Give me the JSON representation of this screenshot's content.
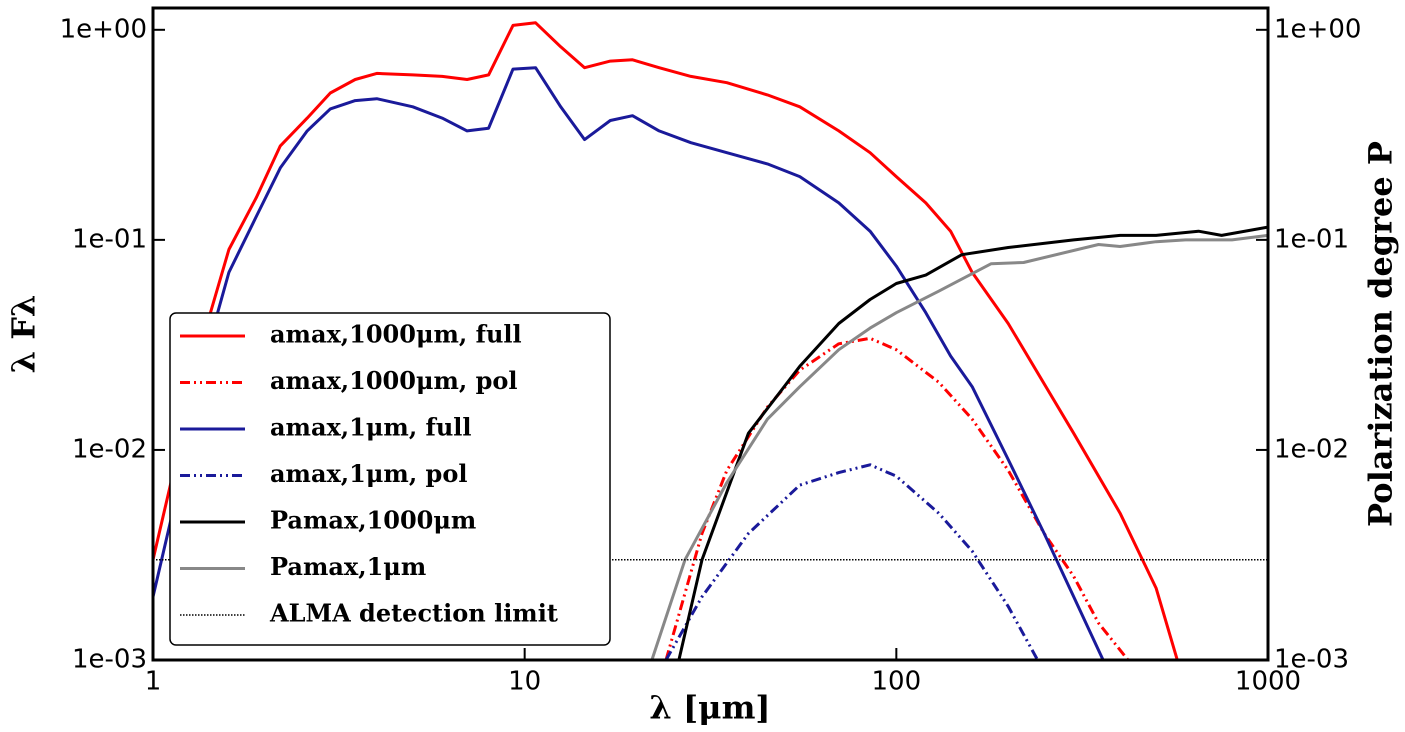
{
  "chart_data": {
    "type": "line",
    "xlabel": "λ [μm]",
    "ylabel": "λ Fλ",
    "y2label": "Polarization degree P",
    "xscale": "log",
    "yscale": "log",
    "xlim": [
      1,
      1000
    ],
    "ylim": [
      0.001,
      1.27
    ],
    "y2lim": [
      0.001,
      1.27
    ],
    "xticks": [
      1,
      10,
      100,
      1000
    ],
    "yticks": [
      {
        "value": 0.001,
        "label": "1e-03"
      },
      {
        "value": 0.01,
        "label": "1e-02"
      },
      {
        "value": 0.1,
        "label": "1e-01"
      },
      {
        "value": 1,
        "label": "1e+00"
      }
    ],
    "y2ticks": [
      {
        "value": 0.001,
        "label": "1e-03"
      },
      {
        "value": 0.01,
        "label": "1e-02"
      },
      {
        "value": 0.1,
        "label": "1e-01"
      },
      {
        "value": 1,
        "label": "1e+00"
      }
    ],
    "legend": "lower left",
    "series": [
      {
        "name": "amax,1000μm, full",
        "color": "#ff0000",
        "dash": "solid",
        "x": [
          1,
          1.2,
          1.4,
          1.6,
          1.9,
          2.2,
          2.6,
          3,
          3.5,
          4,
          5,
          6,
          7,
          8,
          9.3,
          10.7,
          12.5,
          14.5,
          17,
          19.5,
          23,
          28,
          35,
          45,
          55,
          70,
          85,
          100,
          120,
          140,
          160,
          200,
          300,
          400,
          500,
          570
        ],
        "values": [
          0.003,
          0.012,
          0.04,
          0.09,
          0.16,
          0.28,
          0.38,
          0.5,
          0.58,
          0.62,
          0.61,
          0.6,
          0.58,
          0.61,
          1.05,
          1.08,
          0.83,
          0.66,
          0.71,
          0.72,
          0.66,
          0.6,
          0.56,
          0.49,
          0.43,
          0.33,
          0.26,
          0.2,
          0.15,
          0.11,
          0.07,
          0.04,
          0.012,
          0.005,
          0.0022,
          0.001
        ]
      },
      {
        "name": "amax,1000μm, pol",
        "color": "#ff0000",
        "dash": "dashdot",
        "x": [
          24,
          30,
          35,
          45,
          55,
          70,
          85,
          100,
          130,
          160,
          200,
          250,
          300,
          350,
          420
        ],
        "values": [
          0.001,
          0.004,
          0.008,
          0.016,
          0.024,
          0.032,
          0.034,
          0.03,
          0.021,
          0.014,
          0.008,
          0.004,
          0.0025,
          0.0015,
          0.001
        ]
      },
      {
        "name": "amax,1μm, full",
        "color": "#1a1a9a",
        "dash": "solid",
        "x": [
          1,
          1.2,
          1.4,
          1.6,
          1.9,
          2.2,
          2.6,
          3,
          3.5,
          4,
          5,
          6,
          7,
          8,
          9.3,
          10.7,
          12.5,
          14.5,
          17,
          19.5,
          23,
          28,
          35,
          45,
          55,
          70,
          85,
          100,
          120,
          140,
          160,
          200,
          250,
          300,
          360
        ],
        "values": [
          0.002,
          0.008,
          0.03,
          0.07,
          0.13,
          0.22,
          0.33,
          0.42,
          0.46,
          0.47,
          0.43,
          0.38,
          0.33,
          0.34,
          0.65,
          0.66,
          0.43,
          0.3,
          0.37,
          0.39,
          0.33,
          0.29,
          0.26,
          0.23,
          0.2,
          0.15,
          0.11,
          0.075,
          0.045,
          0.028,
          0.02,
          0.009,
          0.004,
          0.002,
          0.001
        ]
      },
      {
        "name": "amax,1μm, pol",
        "color": "#1a1a9a",
        "dash": "dashdot",
        "x": [
          24,
          30,
          40,
          55,
          70,
          85,
          100,
          130,
          160,
          200,
          240
        ],
        "values": [
          0.001,
          0.002,
          0.004,
          0.0068,
          0.0078,
          0.0085,
          0.0075,
          0.005,
          0.0033,
          0.0018,
          0.001
        ]
      },
      {
        "name": "Pamax,1000μm",
        "color": "#000000",
        "dash": "solid",
        "axis": "y2",
        "x": [
          26,
          30,
          40,
          55,
          70,
          85,
          100,
          120,
          150,
          200,
          300,
          400,
          500,
          650,
          750,
          1000
        ],
        "values": [
          0.001,
          0.003,
          0.012,
          0.025,
          0.04,
          0.052,
          0.062,
          0.068,
          0.085,
          0.092,
          0.1,
          0.105,
          0.105,
          0.11,
          0.105,
          0.115
        ]
      },
      {
        "name": "Pamax,1μm",
        "color": "#888888",
        "dash": "solid",
        "axis": "y2",
        "x": [
          22,
          27,
          35,
          45,
          55,
          70,
          85,
          100,
          130,
          180,
          220,
          350,
          400,
          500,
          600,
          800,
          1000
        ],
        "values": [
          0.001,
          0.003,
          0.007,
          0.014,
          0.02,
          0.03,
          0.038,
          0.045,
          0.057,
          0.077,
          0.078,
          0.095,
          0.093,
          0.098,
          0.1,
          0.1,
          0.105
        ]
      },
      {
        "name": "ALMA detection limit",
        "color": "#000000",
        "dash": "dotted",
        "x": [
          1,
          1000
        ],
        "values": [
          0.003,
          0.003
        ]
      }
    ]
  }
}
